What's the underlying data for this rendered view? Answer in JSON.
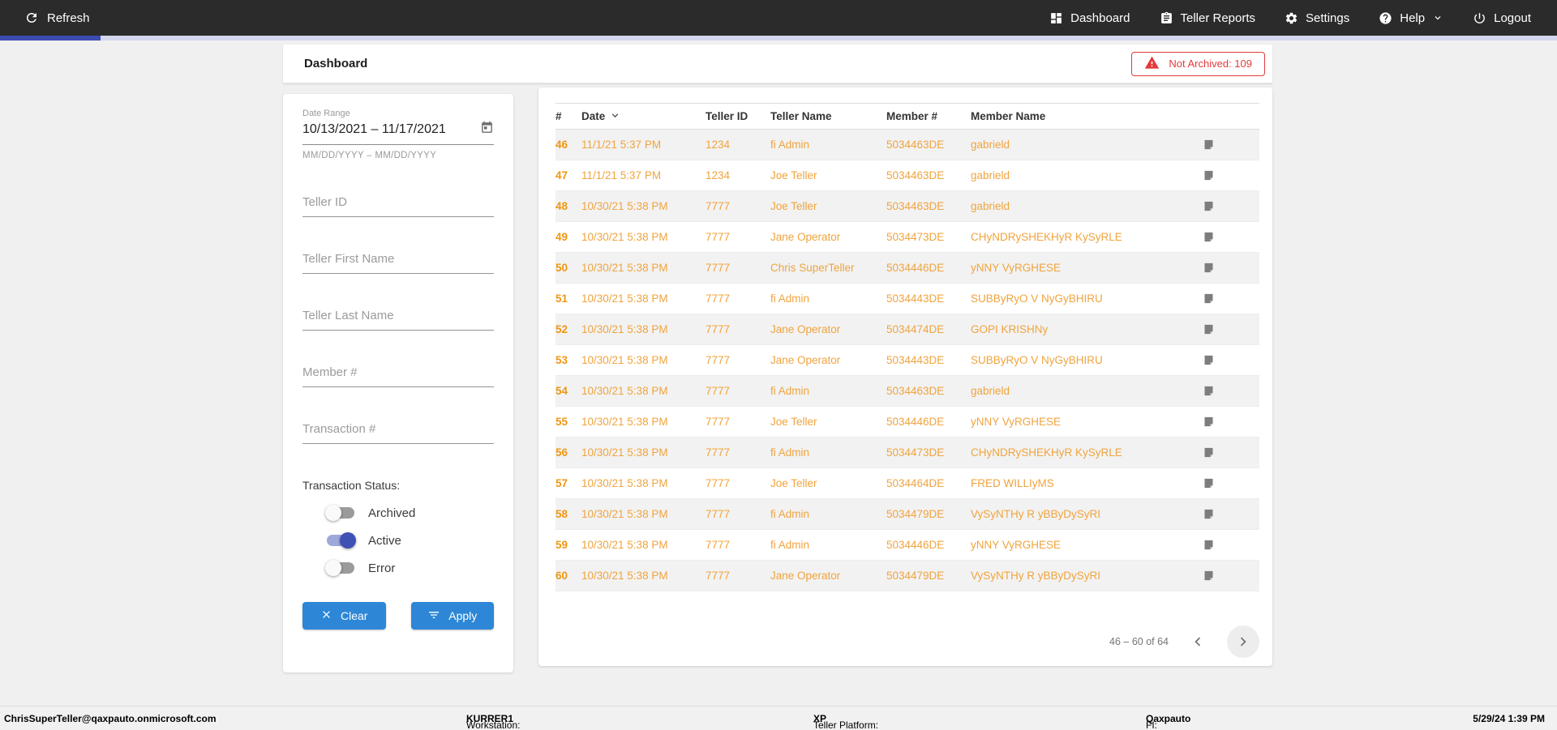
{
  "topbar": {
    "refresh_label": "Refresh",
    "nav": [
      {
        "label": "Dashboard"
      },
      {
        "label": "Teller Reports"
      },
      {
        "label": "Settings"
      },
      {
        "label": "Help"
      },
      {
        "label": "Logout"
      }
    ]
  },
  "header": {
    "title": "Dashboard",
    "badge": "Not Archived: 109"
  },
  "filters": {
    "date_range": {
      "label": "Date Range",
      "value": "10/13/2021 – 11/17/2021",
      "helper": "MM/DD/YYYY – MM/DD/YYYY"
    },
    "fields": [
      {
        "name": "teller-id-input",
        "placeholder": "Teller ID"
      },
      {
        "name": "teller-first-name-input",
        "placeholder": "Teller First Name"
      },
      {
        "name": "teller-last-name-input",
        "placeholder": "Teller Last Name"
      },
      {
        "name": "member-number-input",
        "placeholder": "Member #"
      },
      {
        "name": "transaction-number-input",
        "placeholder": "Transaction #"
      }
    ],
    "status": {
      "label": "Transaction Status:",
      "toggles": [
        {
          "label": "Archived",
          "on": false
        },
        {
          "label": "Active",
          "on": true
        },
        {
          "label": "Error",
          "on": false
        }
      ]
    },
    "clear_label": "Clear",
    "apply_label": "Apply"
  },
  "table": {
    "columns": [
      "#",
      "Date",
      "Teller ID",
      "Teller Name",
      "Member #",
      "Member Name"
    ],
    "rows": [
      {
        "num": "46",
        "date": "11/1/21 5:37 PM",
        "teller_id": "1234",
        "teller_name": "fi Admin",
        "member_num": "5034463DE",
        "member_name": "gabrield"
      },
      {
        "num": "47",
        "date": "11/1/21 5:37 PM",
        "teller_id": "1234",
        "teller_name": "Joe Teller",
        "member_num": "5034463DE",
        "member_name": "gabrield"
      },
      {
        "num": "48",
        "date": "10/30/21 5:38 PM",
        "teller_id": "7777",
        "teller_name": "Joe Teller",
        "member_num": "5034463DE",
        "member_name": "gabrield"
      },
      {
        "num": "49",
        "date": "10/30/21 5:38 PM",
        "teller_id": "7777",
        "teller_name": "Jane Operator",
        "member_num": "5034473DE",
        "member_name": "CHyNDRySHEKHyR KySyRLE"
      },
      {
        "num": "50",
        "date": "10/30/21 5:38 PM",
        "teller_id": "7777",
        "teller_name": "Chris SuperTeller",
        "member_num": "5034446DE",
        "member_name": "yNNY VyRGHESE"
      },
      {
        "num": "51",
        "date": "10/30/21 5:38 PM",
        "teller_id": "7777",
        "teller_name": "fi Admin",
        "member_num": "5034443DE",
        "member_name": "SUBByRyO V NyGyBHIRU"
      },
      {
        "num": "52",
        "date": "10/30/21 5:38 PM",
        "teller_id": "7777",
        "teller_name": "Jane Operator",
        "member_num": "5034474DE",
        "member_name": "GOPI KRISHNy"
      },
      {
        "num": "53",
        "date": "10/30/21 5:38 PM",
        "teller_id": "7777",
        "teller_name": "Jane Operator",
        "member_num": "5034443DE",
        "member_name": "SUBByRyO V NyGyBHIRU"
      },
      {
        "num": "54",
        "date": "10/30/21 5:38 PM",
        "teller_id": "7777",
        "teller_name": "fi Admin",
        "member_num": "5034463DE",
        "member_name": "gabrield"
      },
      {
        "num": "55",
        "date": "10/30/21 5:38 PM",
        "teller_id": "7777",
        "teller_name": "Joe Teller",
        "member_num": "5034446DE",
        "member_name": "yNNY VyRGHESE"
      },
      {
        "num": "56",
        "date": "10/30/21 5:38 PM",
        "teller_id": "7777",
        "teller_name": "fi Admin",
        "member_num": "5034473DE",
        "member_name": "CHyNDRySHEKHyR KySyRLE"
      },
      {
        "num": "57",
        "date": "10/30/21 5:38 PM",
        "teller_id": "7777",
        "teller_name": "Joe Teller",
        "member_num": "5034464DE",
        "member_name": "FRED WILLIyMS"
      },
      {
        "num": "58",
        "date": "10/30/21 5:38 PM",
        "teller_id": "7777",
        "teller_name": "fi Admin",
        "member_num": "5034479DE",
        "member_name": "VySyNTHy R yBByDySyRI"
      },
      {
        "num": "59",
        "date": "10/30/21 5:38 PM",
        "teller_id": "7777",
        "teller_name": "fi Admin",
        "member_num": "5034446DE",
        "member_name": "yNNY VyRGHESE"
      },
      {
        "num": "60",
        "date": "10/30/21 5:38 PM",
        "teller_id": "7777",
        "teller_name": "Jane Operator",
        "member_num": "5034479DE",
        "member_name": "VySyNTHy R yBByDySyRI"
      }
    ],
    "pagination": {
      "range_label": "46 – 60 of 64"
    }
  },
  "footer": {
    "email": "ChrisSuperTeller@qaxpauto.onmicrosoft.com",
    "workstation_label": "Workstation: ",
    "workstation_value": "KURRER1",
    "platform_label": "Teller Platform: ",
    "platform_value": "XP",
    "fi_label": "FI: ",
    "fi_value": "Qaxpauto",
    "datetime": "5/29/24 1:39 PM"
  },
  "colors": {
    "topbar_bg": "#2b2b2b",
    "progress_active": "#3c4bb2",
    "progress_track": "#d3d6ed",
    "button_blue": "#2d87d6",
    "badge_red": "#e43a3a",
    "row_text_orange": "#f0a43e",
    "row_number_orange": "#ef9714",
    "toggle_on_indigo": "#3f51b5"
  }
}
